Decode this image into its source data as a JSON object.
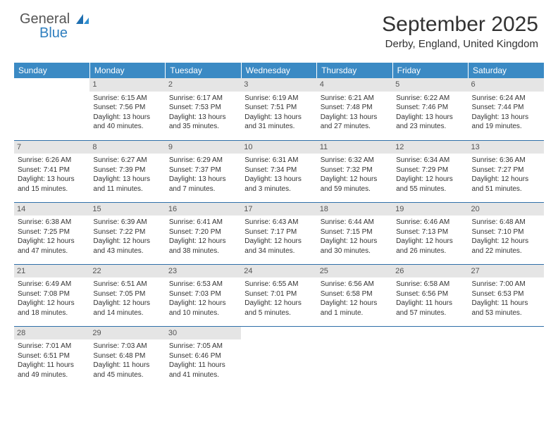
{
  "logo": {
    "general": "General",
    "blue": "Blue"
  },
  "title": "September 2025",
  "location": "Derby, England, United Kingdom",
  "colors": {
    "header_bg": "#3b8ac4",
    "header_text": "#ffffff",
    "daynum_bg": "#e5e5e5",
    "daynum_text": "#555555",
    "rule": "#2f6fa8",
    "logo_blue": "#2f7fbf",
    "body_text": "#333333"
  },
  "weekdays": [
    "Sunday",
    "Monday",
    "Tuesday",
    "Wednesday",
    "Thursday",
    "Friday",
    "Saturday"
  ],
  "weeks": [
    [
      {
        "n": "",
        "sr": "",
        "ss": "",
        "dl": ""
      },
      {
        "n": "1",
        "sr": "Sunrise: 6:15 AM",
        "ss": "Sunset: 7:56 PM",
        "dl": "Daylight: 13 hours and 40 minutes."
      },
      {
        "n": "2",
        "sr": "Sunrise: 6:17 AM",
        "ss": "Sunset: 7:53 PM",
        "dl": "Daylight: 13 hours and 35 minutes."
      },
      {
        "n": "3",
        "sr": "Sunrise: 6:19 AM",
        "ss": "Sunset: 7:51 PM",
        "dl": "Daylight: 13 hours and 31 minutes."
      },
      {
        "n": "4",
        "sr": "Sunrise: 6:21 AM",
        "ss": "Sunset: 7:48 PM",
        "dl": "Daylight: 13 hours and 27 minutes."
      },
      {
        "n": "5",
        "sr": "Sunrise: 6:22 AM",
        "ss": "Sunset: 7:46 PM",
        "dl": "Daylight: 13 hours and 23 minutes."
      },
      {
        "n": "6",
        "sr": "Sunrise: 6:24 AM",
        "ss": "Sunset: 7:44 PM",
        "dl": "Daylight: 13 hours and 19 minutes."
      }
    ],
    [
      {
        "n": "7",
        "sr": "Sunrise: 6:26 AM",
        "ss": "Sunset: 7:41 PM",
        "dl": "Daylight: 13 hours and 15 minutes."
      },
      {
        "n": "8",
        "sr": "Sunrise: 6:27 AM",
        "ss": "Sunset: 7:39 PM",
        "dl": "Daylight: 13 hours and 11 minutes."
      },
      {
        "n": "9",
        "sr": "Sunrise: 6:29 AM",
        "ss": "Sunset: 7:37 PM",
        "dl": "Daylight: 13 hours and 7 minutes."
      },
      {
        "n": "10",
        "sr": "Sunrise: 6:31 AM",
        "ss": "Sunset: 7:34 PM",
        "dl": "Daylight: 13 hours and 3 minutes."
      },
      {
        "n": "11",
        "sr": "Sunrise: 6:32 AM",
        "ss": "Sunset: 7:32 PM",
        "dl": "Daylight: 12 hours and 59 minutes."
      },
      {
        "n": "12",
        "sr": "Sunrise: 6:34 AM",
        "ss": "Sunset: 7:29 PM",
        "dl": "Daylight: 12 hours and 55 minutes."
      },
      {
        "n": "13",
        "sr": "Sunrise: 6:36 AM",
        "ss": "Sunset: 7:27 PM",
        "dl": "Daylight: 12 hours and 51 minutes."
      }
    ],
    [
      {
        "n": "14",
        "sr": "Sunrise: 6:38 AM",
        "ss": "Sunset: 7:25 PM",
        "dl": "Daylight: 12 hours and 47 minutes."
      },
      {
        "n": "15",
        "sr": "Sunrise: 6:39 AM",
        "ss": "Sunset: 7:22 PM",
        "dl": "Daylight: 12 hours and 43 minutes."
      },
      {
        "n": "16",
        "sr": "Sunrise: 6:41 AM",
        "ss": "Sunset: 7:20 PM",
        "dl": "Daylight: 12 hours and 38 minutes."
      },
      {
        "n": "17",
        "sr": "Sunrise: 6:43 AM",
        "ss": "Sunset: 7:17 PM",
        "dl": "Daylight: 12 hours and 34 minutes."
      },
      {
        "n": "18",
        "sr": "Sunrise: 6:44 AM",
        "ss": "Sunset: 7:15 PM",
        "dl": "Daylight: 12 hours and 30 minutes."
      },
      {
        "n": "19",
        "sr": "Sunrise: 6:46 AM",
        "ss": "Sunset: 7:13 PM",
        "dl": "Daylight: 12 hours and 26 minutes."
      },
      {
        "n": "20",
        "sr": "Sunrise: 6:48 AM",
        "ss": "Sunset: 7:10 PM",
        "dl": "Daylight: 12 hours and 22 minutes."
      }
    ],
    [
      {
        "n": "21",
        "sr": "Sunrise: 6:49 AM",
        "ss": "Sunset: 7:08 PM",
        "dl": "Daylight: 12 hours and 18 minutes."
      },
      {
        "n": "22",
        "sr": "Sunrise: 6:51 AM",
        "ss": "Sunset: 7:05 PM",
        "dl": "Daylight: 12 hours and 14 minutes."
      },
      {
        "n": "23",
        "sr": "Sunrise: 6:53 AM",
        "ss": "Sunset: 7:03 PM",
        "dl": "Daylight: 12 hours and 10 minutes."
      },
      {
        "n": "24",
        "sr": "Sunrise: 6:55 AM",
        "ss": "Sunset: 7:01 PM",
        "dl": "Daylight: 12 hours and 5 minutes."
      },
      {
        "n": "25",
        "sr": "Sunrise: 6:56 AM",
        "ss": "Sunset: 6:58 PM",
        "dl": "Daylight: 12 hours and 1 minute."
      },
      {
        "n": "26",
        "sr": "Sunrise: 6:58 AM",
        "ss": "Sunset: 6:56 PM",
        "dl": "Daylight: 11 hours and 57 minutes."
      },
      {
        "n": "27",
        "sr": "Sunrise: 7:00 AM",
        "ss": "Sunset: 6:53 PM",
        "dl": "Daylight: 11 hours and 53 minutes."
      }
    ],
    [
      {
        "n": "28",
        "sr": "Sunrise: 7:01 AM",
        "ss": "Sunset: 6:51 PM",
        "dl": "Daylight: 11 hours and 49 minutes."
      },
      {
        "n": "29",
        "sr": "Sunrise: 7:03 AM",
        "ss": "Sunset: 6:48 PM",
        "dl": "Daylight: 11 hours and 45 minutes."
      },
      {
        "n": "30",
        "sr": "Sunrise: 7:05 AM",
        "ss": "Sunset: 6:46 PM",
        "dl": "Daylight: 11 hours and 41 minutes."
      },
      {
        "n": "",
        "sr": "",
        "ss": "",
        "dl": ""
      },
      {
        "n": "",
        "sr": "",
        "ss": "",
        "dl": ""
      },
      {
        "n": "",
        "sr": "",
        "ss": "",
        "dl": ""
      },
      {
        "n": "",
        "sr": "",
        "ss": "",
        "dl": ""
      }
    ]
  ]
}
